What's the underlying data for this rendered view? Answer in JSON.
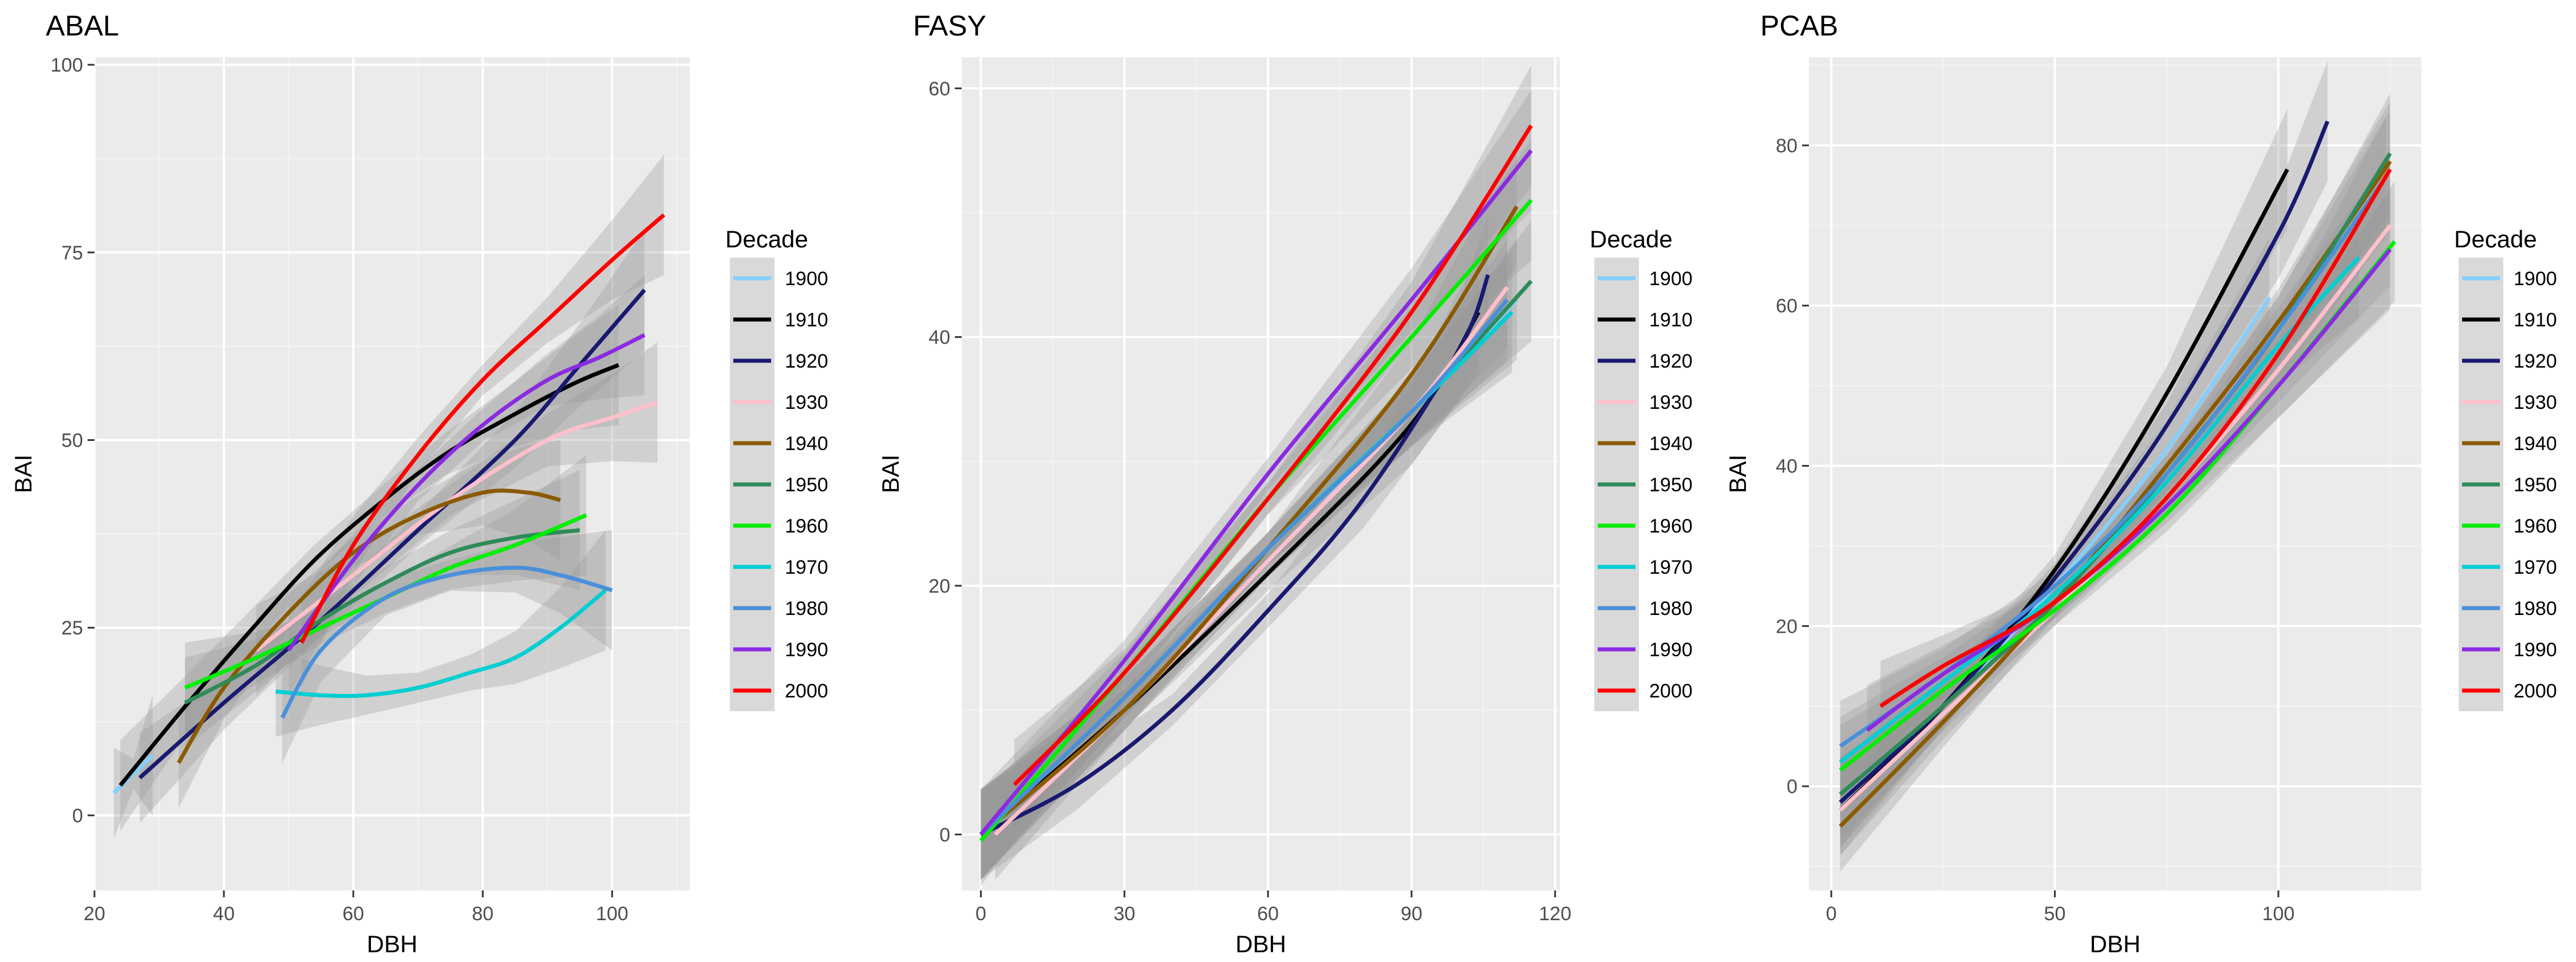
{
  "chart_data": [
    {
      "type": "line",
      "title": "ABAL",
      "xlabel": "DBH",
      "ylabel": "BAI",
      "xlim": [
        20,
        112
      ],
      "ylim": [
        -10,
        101
      ],
      "xticks": [
        20,
        40,
        60,
        80,
        100
      ],
      "yticks": [
        0,
        25,
        50,
        75,
        100
      ],
      "legend_title": "Decade",
      "legend_position": "right",
      "ribbon": true,
      "series": [
        {
          "name": "1900",
          "color": "#87CEFA",
          "x": [
            23,
            26,
            29
          ],
          "y": [
            3,
            5.5,
            8
          ]
        },
        {
          "name": "1910",
          "color": "#000000",
          "x": [
            24,
            34,
            44,
            54,
            64,
            74,
            84,
            94,
            101
          ],
          "y": [
            4,
            14.5,
            24.5,
            34,
            41.5,
            48,
            53,
            57.5,
            60
          ]
        },
        {
          "name": "1920",
          "color": "#191970",
          "x": [
            27,
            40,
            55,
            70,
            85,
            95,
            105
          ],
          "y": [
            5,
            15,
            26,
            38,
            50,
            60,
            70
          ]
        },
        {
          "name": "1930",
          "color": "#FFC0CB",
          "x": [
            45,
            60,
            75,
            90,
            100,
            107
          ],
          "y": [
            22,
            32,
            42,
            50,
            53,
            55
          ]
        },
        {
          "name": "1940",
          "color": "#8B5A00",
          "x": [
            33,
            40,
            50,
            60,
            70,
            80,
            87,
            92
          ],
          "y": [
            7,
            17,
            27,
            35,
            40,
            43,
            43,
            42
          ]
        },
        {
          "name": "1950",
          "color": "#2E8B57",
          "x": [
            34,
            45,
            55,
            65,
            75,
            85,
            95
          ],
          "y": [
            15,
            20,
            26,
            31,
            35,
            37,
            38
          ]
        },
        {
          "name": "1960",
          "color": "#00EE00",
          "x": [
            34,
            45,
            55,
            65,
            75,
            85,
            96
          ],
          "y": [
            17,
            21,
            25,
            29,
            33,
            36,
            40
          ]
        },
        {
          "name": "1970",
          "color": "#00CED1",
          "x": [
            48,
            55,
            62,
            70,
            78,
            85,
            92,
            99
          ],
          "y": [
            16.5,
            16,
            16,
            17,
            19,
            21,
            25,
            30
          ]
        },
        {
          "name": "1980",
          "color": "#4A90D9",
          "x": [
            49,
            55,
            65,
            75,
            85,
            92,
            100
          ],
          "y": [
            13,
            22,
            29,
            32,
            33,
            32,
            30
          ]
        },
        {
          "name": "1990",
          "color": "#8A2BE2",
          "x": [
            50,
            60,
            70,
            80,
            90,
            98,
            105
          ],
          "y": [
            22,
            34,
            44,
            52,
            58,
            61,
            64
          ]
        },
        {
          "name": "2000",
          "color": "#FF0000",
          "x": [
            52,
            60,
            70,
            80,
            90,
            100,
            108
          ],
          "y": [
            23,
            36,
            48,
            58,
            66,
            74,
            80
          ]
        }
      ]
    },
    {
      "type": "line",
      "title": "FASY",
      "xlabel": "DBH",
      "ylabel": "BAI",
      "xlim": [
        -4,
        121
      ],
      "ylim": [
        -4.5,
        62.5
      ],
      "xticks": [
        0,
        30,
        60,
        90,
        120
      ],
      "yticks": [
        0,
        20,
        40,
        60
      ],
      "legend_title": "Decade",
      "legend_position": "right",
      "ribbon": true,
      "series": [
        {
          "name": "1900",
          "color": "#87CEFA",
          "x": [
            0,
            30,
            60,
            90,
            112
          ],
          "y": [
            0,
            10,
            22,
            34,
            43
          ]
        },
        {
          "name": "1910",
          "color": "#000000",
          "x": [
            0,
            30,
            60,
            90,
            104
          ],
          "y": [
            0,
            10,
            21,
            33,
            42
          ]
        },
        {
          "name": "1920",
          "color": "#191970",
          "x": [
            0,
            20,
            40,
            60,
            80,
            100,
            106
          ],
          "y": [
            0,
            4,
            10,
            18,
            27,
            39,
            45
          ]
        },
        {
          "name": "1930",
          "color": "#FFC0CB",
          "x": [
            3,
            30,
            60,
            90,
            110
          ],
          "y": [
            0,
            10,
            22,
            34,
            44
          ]
        },
        {
          "name": "1940",
          "color": "#8B5A00",
          "x": [
            0,
            30,
            60,
            90,
            112
          ],
          "y": [
            0,
            10,
            23,
            37,
            50.5
          ]
        },
        {
          "name": "1950",
          "color": "#2E8B57",
          "x": [
            0,
            30,
            60,
            90,
            115
          ],
          "y": [
            0,
            11,
            23,
            34,
            44.5
          ]
        },
        {
          "name": "1960",
          "color": "#00EE00",
          "x": [
            0,
            30,
            60,
            90,
            115
          ],
          "y": [
            -0.5,
            13,
            27,
            40,
            51
          ]
        },
        {
          "name": "1970",
          "color": "#00CED1",
          "x": [
            0,
            30,
            60,
            90,
            111
          ],
          "y": [
            0,
            11,
            23,
            34,
            42
          ]
        },
        {
          "name": "1980",
          "color": "#4A90D9",
          "x": [
            0,
            30,
            60,
            90,
            110
          ],
          "y": [
            0,
            11,
            23,
            34,
            43
          ]
        },
        {
          "name": "1990",
          "color": "#8A2BE2",
          "x": [
            0,
            30,
            60,
            90,
            115
          ],
          "y": [
            0,
            14,
            29,
            43,
            55
          ]
        },
        {
          "name": "2000",
          "color": "#FF0000",
          "x": [
            7,
            30,
            60,
            90,
            115
          ],
          "y": [
            4,
            13,
            27,
            42,
            57
          ]
        }
      ]
    },
    {
      "type": "line",
      "title": "PCAB",
      "xlabel": "DBH",
      "ylabel": "BAI",
      "xlim": [
        -5,
        132
      ],
      "ylim": [
        -13,
        91
      ],
      "xticks": [
        0,
        50,
        100
      ],
      "yticks": [
        0,
        20,
        40,
        60,
        80
      ],
      "legend_title": "Decade",
      "legend_position": "right",
      "ribbon": true,
      "series": [
        {
          "name": "1900",
          "color": "#87CEFA",
          "x": [
            2,
            25,
            50,
            75,
            98
          ],
          "y": [
            -2,
            10,
            25,
            42,
            61
          ]
        },
        {
          "name": "1910",
          "color": "#000000",
          "x": [
            2,
            25,
            50,
            75,
            102
          ],
          "y": [
            -3,
            10,
            27,
            49,
            77
          ]
        },
        {
          "name": "1920",
          "color": "#191970",
          "x": [
            2,
            25,
            50,
            75,
            100,
            111
          ],
          "y": [
            -2,
            10,
            26,
            45,
            69,
            83
          ]
        },
        {
          "name": "1930",
          "color": "#FFC0CB",
          "x": [
            2,
            25,
            50,
            75,
            100,
            125
          ],
          "y": [
            -3,
            9,
            22,
            36,
            52,
            70
          ]
        },
        {
          "name": "1940",
          "color": "#8B5A00",
          "x": [
            2,
            25,
            50,
            75,
            100,
            125
          ],
          "y": [
            -5,
            8,
            23,
            40,
            58,
            78
          ]
        },
        {
          "name": "1950",
          "color": "#2E8B57",
          "x": [
            2,
            25,
            50,
            75,
            100,
            125
          ],
          "y": [
            -1,
            10,
            23,
            39,
            57,
            79
          ]
        },
        {
          "name": "1960",
          "color": "#00EE00",
          "x": [
            2,
            25,
            50,
            75,
            100,
            126
          ],
          "y": [
            2,
            12,
            22,
            34,
            50,
            68
          ]
        },
        {
          "name": "1970",
          "color": "#00CED1",
          "x": [
            2,
            25,
            50,
            75,
            100,
            118
          ],
          "y": [
            3,
            13,
            24,
            38,
            55,
            66
          ]
        },
        {
          "name": "1980",
          "color": "#4A90D9",
          "x": [
            2,
            25,
            50,
            75,
            100,
            124
          ],
          "y": [
            5,
            14,
            25,
            39,
            57,
            76
          ]
        },
        {
          "name": "1990",
          "color": "#8A2BE2",
          "x": [
            8,
            25,
            50,
            75,
            100,
            125
          ],
          "y": [
            7,
            14,
            23,
            35,
            50,
            67
          ]
        },
        {
          "name": "2000",
          "color": "#FF0000",
          "x": [
            11,
            25,
            50,
            75,
            100,
            125
          ],
          "y": [
            10,
            15,
            23,
            36,
            54,
            77
          ]
        }
      ]
    }
  ]
}
